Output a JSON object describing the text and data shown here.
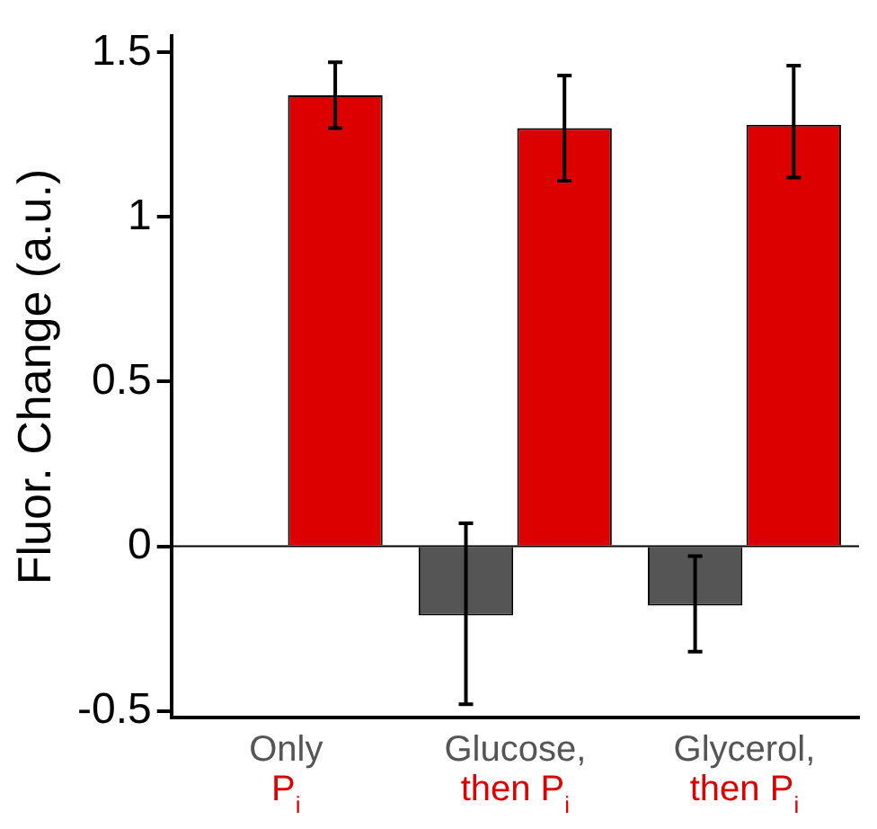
{
  "chart_data": {
    "type": "bar",
    "ylabel": "Fluor. Change (a.u.)",
    "categories": [
      "Only\nP$_{i}$",
      "Glucose,\nthen P$_{i}$",
      "Glycerol,\nthen P$_{i}$"
    ],
    "series": [
      {
        "color": "#555555",
        "values": [
          null,
          -0.21,
          -0.18
        ],
        "errors": [
          null,
          [
            -0.48,
            0.07
          ],
          [
            -0.32,
            -0.03
          ]
        ]
      },
      {
        "color": "#dd0000",
        "values": [
          1.37,
          1.27,
          1.28
        ],
        "errors": [
          [
            1.27,
            1.47
          ],
          [
            1.11,
            1.43
          ],
          [
            1.12,
            1.46
          ]
        ]
      }
    ],
    "ylim": [
      -0.52,
      1.55
    ],
    "yticks": [
      -0.5,
      0,
      0.5,
      1,
      1.5
    ],
    "grid": false,
    "legend": false,
    "ref_lines": [
      {
        "axis": "y",
        "value": 0,
        "color": "#000000"
      }
    ]
  }
}
